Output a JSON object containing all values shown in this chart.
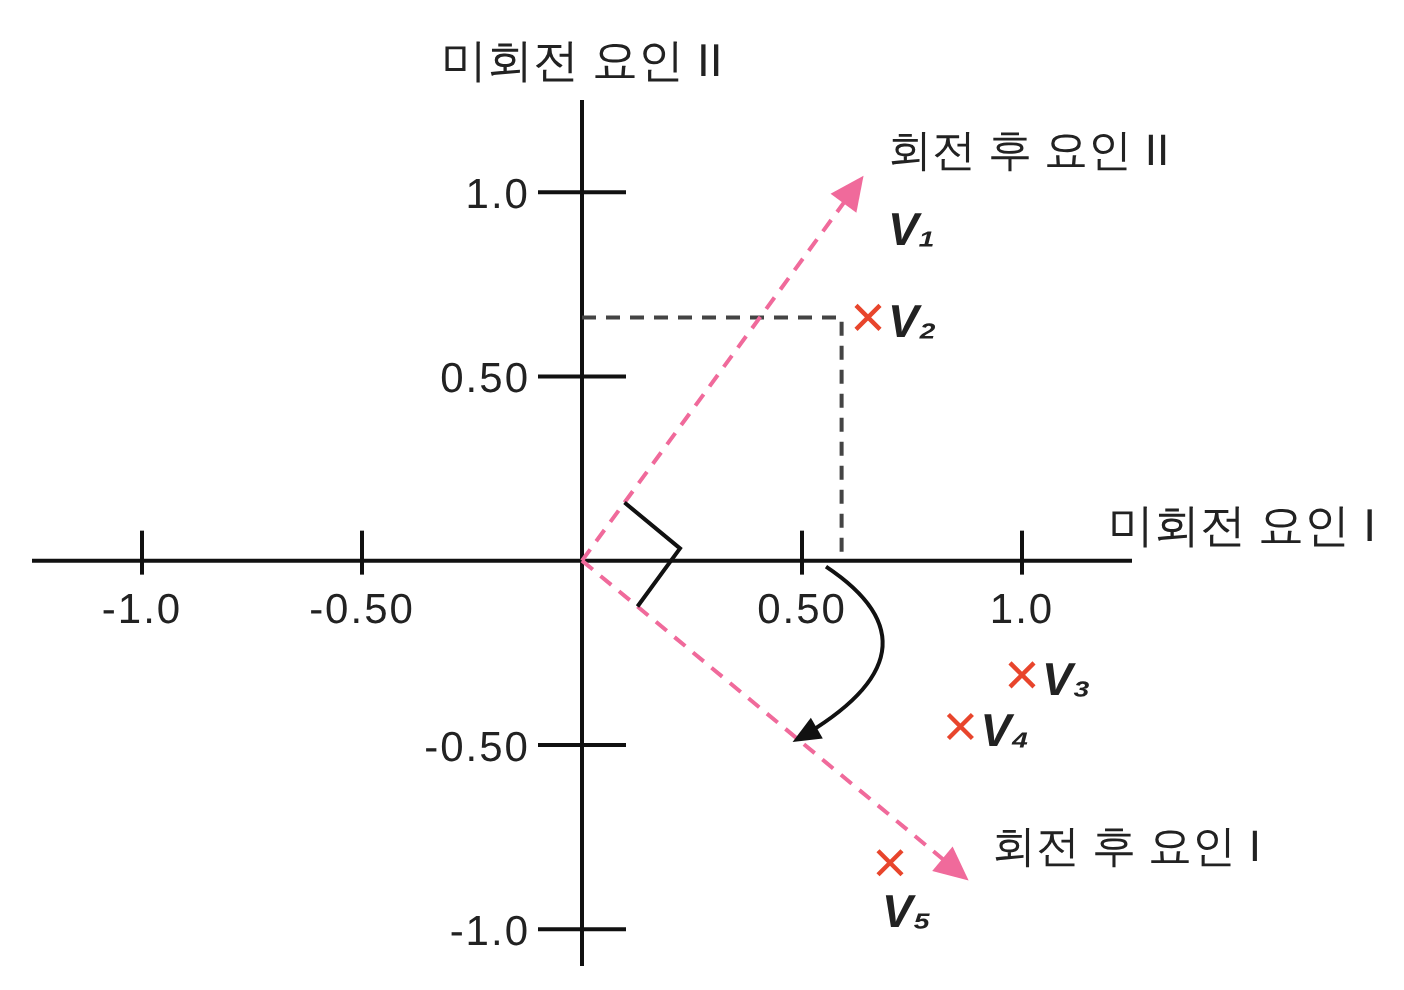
{
  "chart_data": {
    "type": "scatter",
    "xlabel": "미회전 요인 I",
    "ylabel": "미회전 요인 II",
    "xlim": [
      -1.25,
      1.25
    ],
    "ylim": [
      -1.1,
      1.25
    ],
    "xticks": [
      {
        "value": -1,
        "label": "-1.0"
      },
      {
        "value": -0.5,
        "label": "-0.50"
      },
      {
        "value": 0.5,
        "label": "0.50"
      },
      {
        "value": 1,
        "label": "1.0"
      }
    ],
    "yticks": [
      {
        "value": -1,
        "label": "-1.0"
      },
      {
        "value": -0.5,
        "label": "-0.50"
      },
      {
        "value": 0.5,
        "label": "0.50"
      },
      {
        "value": 1,
        "label": "1.0"
      }
    ],
    "series": [
      {
        "type": "line",
        "color": "#444444",
        "x": [
          0,
          0.59,
          0.59
        ],
        "values": [
          0.66,
          0.66,
          0
        ],
        "line_style": "dashed",
        "marker": "none"
      },
      {
        "color": "#e8452c",
        "x": [
          0.65,
          1.0,
          0.86,
          0.7
        ],
        "values": [
          0.66,
          -0.31,
          -0.45,
          -0.82
        ],
        "marker": "cross",
        "value_labels": [
          "V₂",
          "V₃",
          "V₄",
          "V₅"
        ]
      }
    ],
    "annotations": [
      "회전 후 요인 II",
      "회전 후 요인 I",
      "V₁"
    ]
  }
}
